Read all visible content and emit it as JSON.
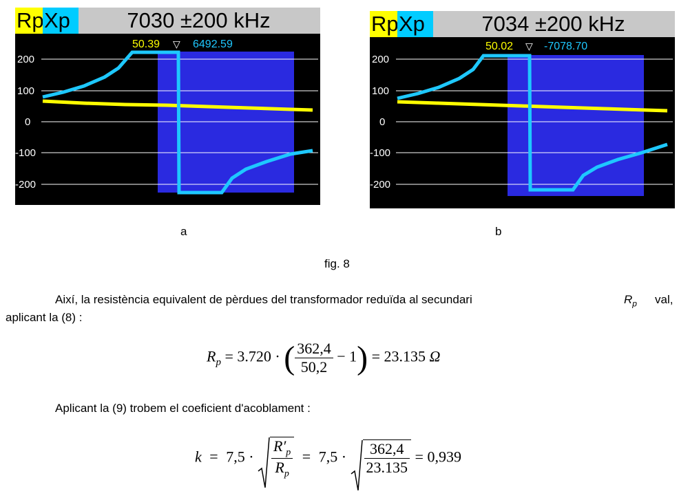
{
  "figure": {
    "panels": [
      {
        "id": "a",
        "legend_rp": "Rp",
        "legend_xp": "Xp",
        "frequency": "7030 ±200 kHz",
        "marker_rp": "50.39",
        "marker_symbol": "▽",
        "marker_xp": "6492.59",
        "y_ticks": [
          "200",
          "100",
          "0",
          "-100",
          "-200"
        ],
        "label": "a",
        "colors": {
          "rp": "#ffff00",
          "xp": "#1ec8ff",
          "band": "#2a2ae0",
          "grid": "#ffffff",
          "background": "#000000"
        }
      },
      {
        "id": "b",
        "legend_rp": "Rp",
        "legend_xp": "Xp",
        "frequency": "7034 ±200 kHz",
        "marker_rp": "50.02",
        "marker_symbol": "▽",
        "marker_xp": "-7078.70",
        "y_ticks": [
          "200",
          "100",
          "0",
          "-100",
          "-200"
        ],
        "label": "b",
        "colors": {
          "rp": "#ffff00",
          "xp": "#1ec8ff",
          "band": "#2a2ae0",
          "grid": "#ffffff",
          "background": "#000000"
        }
      }
    ],
    "caption": "fig. 8"
  },
  "text": {
    "para1_a": "Així, la resistència equivalent de pèrdues del transformador reduïda al secundari",
    "para1_var": "R",
    "para1_sub": "p",
    "para1_b": "val,",
    "para1_line2": "aplicant la (8) :",
    "para2": "Aplicant la (9) trobem el coeficient d'acoblament :"
  },
  "eq1": {
    "lhs": "R",
    "lhs_sub": "p",
    "equals": "=",
    "coef": "3.720 ·",
    "num": "362,4",
    "den": "50,2",
    "minus_one": "− 1",
    "result": "= 23.135",
    "unit": "Ω"
  },
  "eq2": {
    "lhs": "k",
    "eq": "=",
    "coef1": "7,5 ·",
    "num1": "R′",
    "num1_sub": "p",
    "den1": "R",
    "den1_sub": "p",
    "eq2": "=",
    "coef2": "7,5 ·",
    "num2": "362,4",
    "den2": "23.135",
    "result": "= 0,939"
  }
}
